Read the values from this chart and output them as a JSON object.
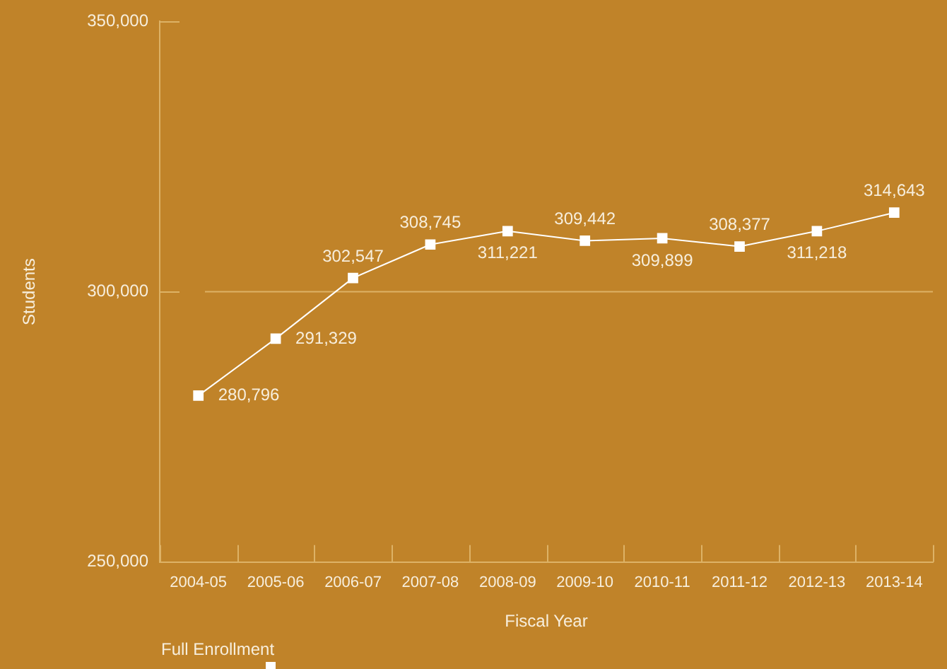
{
  "chart_data": {
    "type": "line",
    "xlabel": "Fiscal Year",
    "ylabel": "Students",
    "categories": [
      "2004-05",
      "2005-06",
      "2006-07",
      "2007-08",
      "2008-09",
      "2009-10",
      "2010-11",
      "2011-12",
      "2012-13",
      "2013-14"
    ],
    "series": [
      {
        "name": "Full Enrollment",
        "color": "#ffffff",
        "values": [
          280796,
          291329,
          302547,
          308745,
          311221,
          309442,
          309899,
          308377,
          311218,
          314643
        ],
        "value_labels": [
          "280,796",
          "291,329",
          "302,547",
          "308,745",
          "311,221",
          "309,442",
          "309,899",
          "308,377",
          "311,218",
          "314,643"
        ]
      }
    ],
    "ylim": [
      250000,
      350000
    ],
    "yticks": [
      {
        "value": 250000,
        "label": "250,000"
      },
      {
        "value": 300000,
        "label": "300,000"
      },
      {
        "value": 350000,
        "label": "350,000"
      }
    ],
    "ref_lines": [
      {
        "axis": "y",
        "value": 300000,
        "color": "#ddb266"
      }
    ],
    "marker": "square",
    "line_style": "solid",
    "legend": "bottom left",
    "grid": false
  }
}
